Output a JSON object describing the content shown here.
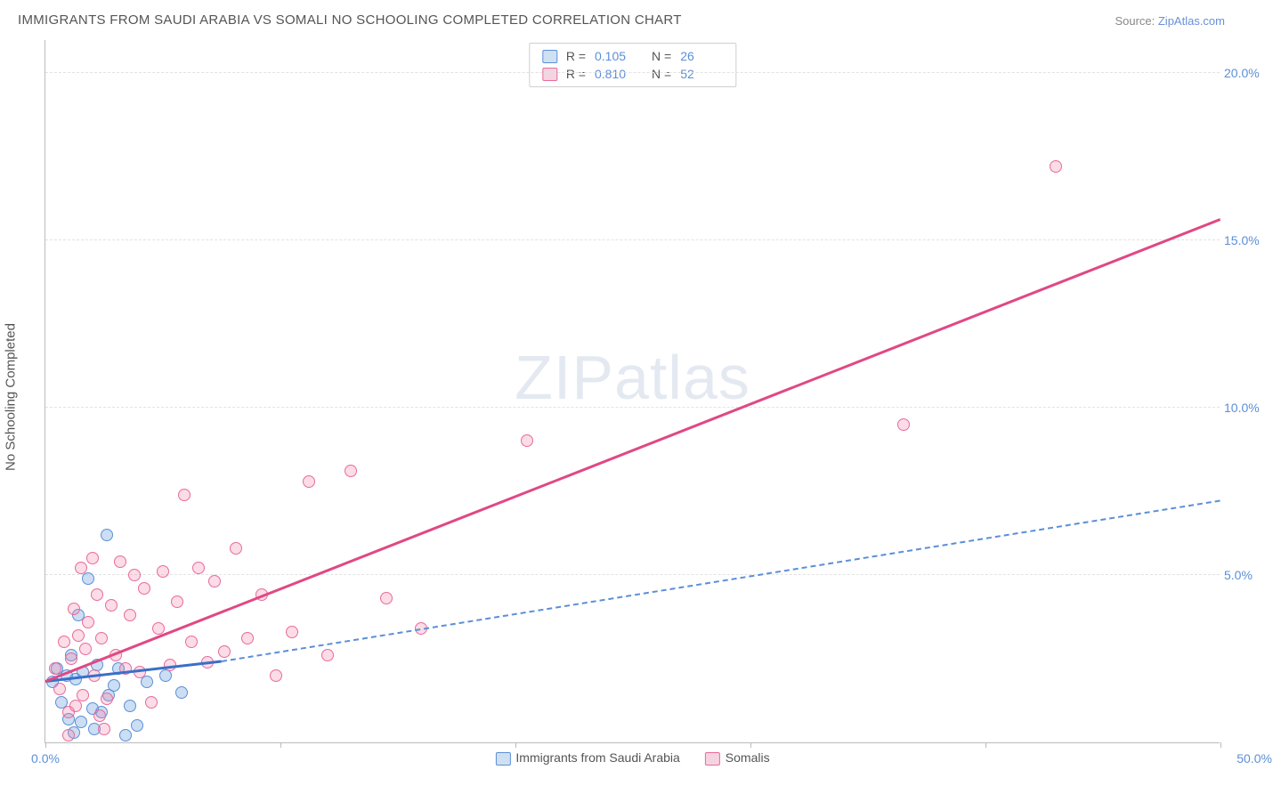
{
  "title": "IMMIGRANTS FROM SAUDI ARABIA VS SOMALI NO SCHOOLING COMPLETED CORRELATION CHART",
  "source_prefix": "Source: ",
  "source_link": "ZipAtlas.com",
  "yaxis_label": "No Schooling Completed",
  "watermark": "ZIPatlas",
  "chart": {
    "type": "scatter",
    "xlim": [
      0,
      50
    ],
    "ylim": [
      0,
      21
    ],
    "y_ticks": [
      5,
      10,
      15,
      20
    ],
    "y_tick_labels": [
      "5.0%",
      "10.0%",
      "15.0%",
      "20.0%"
    ],
    "x_ticks": [
      0,
      10,
      20,
      30,
      40,
      50
    ],
    "x_tick_labels_shown": {
      "0": "0.0%",
      "50": "50.0%"
    },
    "background_color": "#ffffff",
    "grid_color": "#e2e2e2",
    "axis_color": "#bbbbbb",
    "tick_label_color": "#5b8fd8",
    "series": [
      {
        "name": "Immigrants from Saudi Arabia",
        "color_fill": "rgba(108,160,220,0.35)",
        "color_stroke": "#5b8fd8",
        "swatch_fill": "#cfe0f2",
        "swatch_border": "#5b8fd8",
        "R": "0.105",
        "N": "26",
        "trend": {
          "x1": 0,
          "y1": 1.8,
          "x2": 7.5,
          "y2": 2.4,
          "color": "#3a6fc8",
          "width": 2.5,
          "dash": false
        },
        "trend_extrapolate": {
          "x1": 7.5,
          "y1": 2.4,
          "x2": 50,
          "y2": 7.2,
          "color": "#5b8fd8",
          "width": 2,
          "dash": true
        },
        "points": [
          [
            0.3,
            1.8
          ],
          [
            0.5,
            2.2
          ],
          [
            0.7,
            1.2
          ],
          [
            0.9,
            2.0
          ],
          [
            1.0,
            0.7
          ],
          [
            1.1,
            2.6
          ],
          [
            1.2,
            0.3
          ],
          [
            1.3,
            1.9
          ],
          [
            1.4,
            3.8
          ],
          [
            1.5,
            0.6
          ],
          [
            1.6,
            2.1
          ],
          [
            1.8,
            4.9
          ],
          [
            2.0,
            1.0
          ],
          [
            2.1,
            0.4
          ],
          [
            2.2,
            2.3
          ],
          [
            2.4,
            0.9
          ],
          [
            2.6,
            6.2
          ],
          [
            2.7,
            1.4
          ],
          [
            2.9,
            1.7
          ],
          [
            3.1,
            2.2
          ],
          [
            3.4,
            0.2
          ],
          [
            3.6,
            1.1
          ],
          [
            3.9,
            0.5
          ],
          [
            4.3,
            1.8
          ],
          [
            5.1,
            2.0
          ],
          [
            5.8,
            1.5
          ]
        ]
      },
      {
        "name": "Somalis",
        "color_fill": "rgba(240,130,170,0.28)",
        "color_stroke": "#e96a9b",
        "swatch_fill": "#f6d3e0",
        "swatch_border": "#e96a9b",
        "R": "0.810",
        "N": "52",
        "trend": {
          "x1": 0,
          "y1": 1.8,
          "x2": 50,
          "y2": 15.6,
          "color": "#e04884",
          "width": 2.5,
          "dash": false
        },
        "points": [
          [
            0.4,
            2.2
          ],
          [
            0.6,
            1.6
          ],
          [
            0.8,
            3.0
          ],
          [
            1.0,
            0.9
          ],
          [
            1.1,
            2.5
          ],
          [
            1.2,
            4.0
          ],
          [
            1.3,
            1.1
          ],
          [
            1.4,
            3.2
          ],
          [
            1.5,
            5.2
          ],
          [
            1.6,
            1.4
          ],
          [
            1.7,
            2.8
          ],
          [
            1.8,
            3.6
          ],
          [
            2.0,
            5.5
          ],
          [
            2.1,
            2.0
          ],
          [
            2.2,
            4.4
          ],
          [
            2.3,
            0.8
          ],
          [
            2.4,
            3.1
          ],
          [
            2.6,
            1.3
          ],
          [
            2.8,
            4.1
          ],
          [
            3.0,
            2.6
          ],
          [
            3.2,
            5.4
          ],
          [
            3.4,
            2.2
          ],
          [
            3.6,
            3.8
          ],
          [
            3.8,
            5.0
          ],
          [
            4.0,
            2.1
          ],
          [
            4.2,
            4.6
          ],
          [
            4.5,
            1.2
          ],
          [
            4.8,
            3.4
          ],
          [
            5.0,
            5.1
          ],
          [
            5.3,
            2.3
          ],
          [
            5.6,
            4.2
          ],
          [
            5.9,
            7.4
          ],
          [
            6.2,
            3.0
          ],
          [
            6.5,
            5.2
          ],
          [
            6.9,
            2.4
          ],
          [
            7.2,
            4.8
          ],
          [
            7.6,
            2.7
          ],
          [
            8.1,
            5.8
          ],
          [
            8.6,
            3.1
          ],
          [
            9.2,
            4.4
          ],
          [
            9.8,
            2.0
          ],
          [
            10.5,
            3.3
          ],
          [
            11.2,
            7.8
          ],
          [
            12.0,
            2.6
          ],
          [
            13.0,
            8.1
          ],
          [
            14.5,
            4.3
          ],
          [
            16.0,
            3.4
          ],
          [
            20.5,
            9.0
          ],
          [
            36.5,
            9.5
          ],
          [
            43.0,
            17.2
          ],
          [
            1.0,
            0.2
          ],
          [
            2.5,
            0.4
          ]
        ]
      }
    ]
  },
  "legend_top": {
    "r_label": "R =",
    "n_label": "N ="
  },
  "legend_bottom_labels": [
    "Immigrants from Saudi Arabia",
    "Somalis"
  ]
}
